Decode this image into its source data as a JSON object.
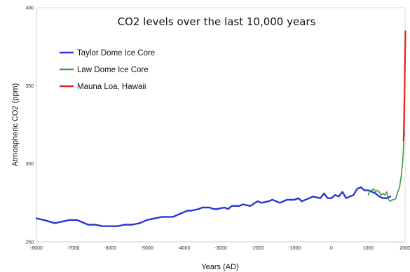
{
  "chart_data": {
    "type": "line",
    "title": "CO2 levels over the last 10,000 years",
    "xlabel": "Years (AD)",
    "ylabel": "Atmospheric CO2 (ppm)",
    "xlim": [
      -8000,
      2000
    ],
    "ylim": [
      250,
      400
    ],
    "x_ticks": [
      -8000,
      -7000,
      -6000,
      -5000,
      -4000,
      -3000,
      -2000,
      -1000,
      0,
      1000,
      2000
    ],
    "y_ticks": [
      250,
      300,
      350,
      400
    ],
    "grid": false,
    "legend": "top-left",
    "series": [
      {
        "name": "Taylor Dome Ice Core",
        "color": "#2a36d6",
        "x": [
          -8000,
          -7800,
          -7500,
          -7300,
          -7100,
          -6900,
          -6800,
          -6600,
          -6400,
          -6200,
          -6000,
          -5800,
          -5600,
          -5400,
          -5200,
          -5000,
          -4800,
          -4600,
          -4400,
          -4300,
          -4100,
          -3900,
          -3800,
          -3600,
          -3500,
          -3300,
          -3200,
          -3100,
          -2900,
          -2800,
          -2700,
          -2500,
          -2400,
          -2200,
          -2000,
          -1900,
          -1700,
          -1600,
          -1400,
          -1200,
          -1000,
          -900,
          -800,
          -600,
          -500,
          -300,
          -200,
          -100,
          0,
          100,
          200,
          300,
          400,
          500,
          600,
          700,
          800,
          900,
          1000,
          1100,
          1200,
          1300,
          1400,
          1500,
          1600
        ],
        "values": [
          265,
          264,
          262,
          263,
          264,
          264,
          263,
          261,
          261,
          260,
          260,
          260,
          261,
          261,
          262,
          264,
          265,
          266,
          266,
          266,
          268,
          270,
          270,
          271,
          272,
          272,
          271,
          271,
          272,
          271,
          273,
          273,
          274,
          273,
          276,
          275,
          276,
          277,
          275,
          277,
          277,
          278,
          276,
          278,
          279,
          278,
          281,
          278,
          278,
          280,
          279,
          282,
          278,
          279,
          280,
          284,
          285,
          283,
          283,
          282,
          281,
          279,
          278,
          278,
          279
        ]
      },
      {
        "name": "Law Dome Ice Core",
        "color": "#3a9a4a",
        "x": [
          1000,
          1050,
          1100,
          1150,
          1200,
          1250,
          1300,
          1350,
          1400,
          1450,
          1500,
          1550,
          1600,
          1650,
          1700,
          1750,
          1800,
          1850,
          1900,
          1930,
          1950,
          1970,
          1980
        ],
        "values": [
          280,
          283,
          283,
          284,
          282,
          283,
          282,
          280,
          281,
          280,
          282,
          277,
          276,
          277,
          277,
          278,
          282,
          285,
          293,
          300,
          308,
          318,
          320
        ]
      },
      {
        "name": "Mauna Loa, Hawaii",
        "color": "#e02020",
        "x": [
          1958,
          1965,
          1970,
          1975,
          1980,
          1985,
          1990,
          1995,
          2000,
          2005,
          2008
        ],
        "values": [
          315,
          320,
          325,
          331,
          338,
          345,
          354,
          361,
          369,
          379,
          385
        ]
      }
    ]
  }
}
